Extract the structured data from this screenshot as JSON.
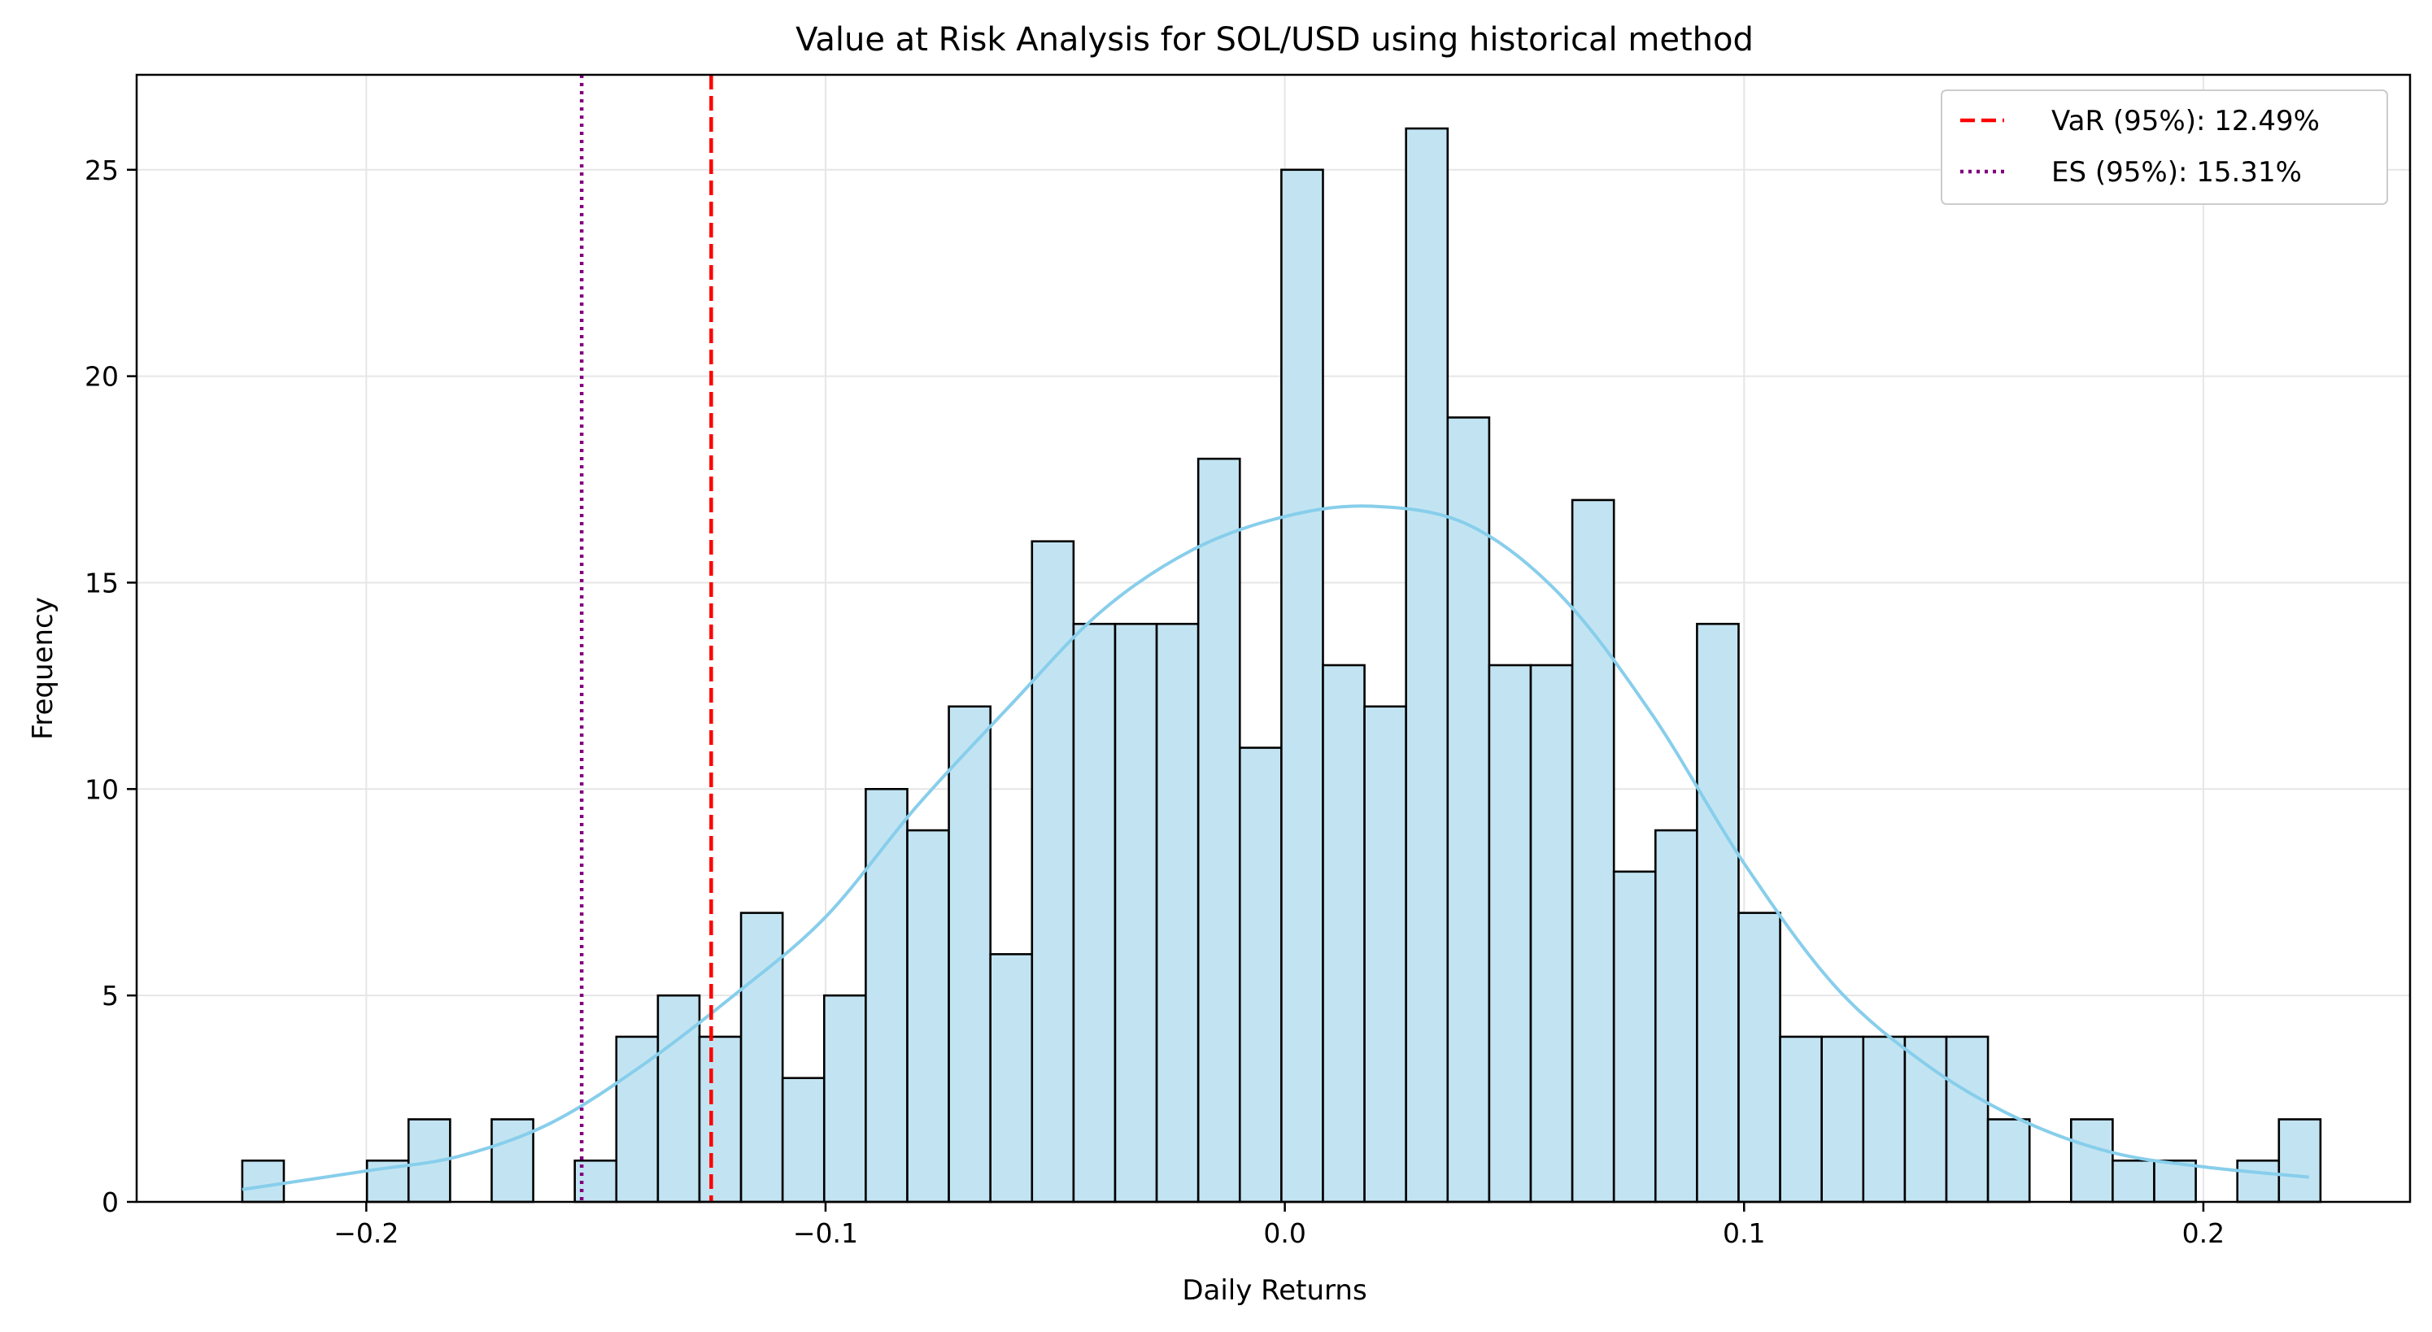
{
  "chart_data": {
    "type": "bar",
    "title": "Value at Risk Analysis for SOL/USD using historical method",
    "xlabel": "Daily Returns",
    "ylabel": "Frequency",
    "xlim": [
      -0.25,
      0.245
    ],
    "ylim": [
      0,
      27.3
    ],
    "grid": true,
    "legend_position": "top-right",
    "x_ticks": [
      {
        "value": -0.2,
        "label": "−0.2"
      },
      {
        "value": -0.1,
        "label": "−0.1"
      },
      {
        "value": 0.0,
        "label": "0.0"
      },
      {
        "value": 0.1,
        "label": "0.1"
      },
      {
        "value": 0.2,
        "label": "0.2"
      }
    ],
    "y_ticks": [
      {
        "value": 0,
        "label": "0"
      },
      {
        "value": 5,
        "label": "5"
      },
      {
        "value": 10,
        "label": "10"
      },
      {
        "value": 15,
        "label": "15"
      },
      {
        "value": 20,
        "label": "20"
      },
      {
        "value": 25,
        "label": "25"
      }
    ],
    "histogram": {
      "bin_start": -0.227,
      "bin_width": 0.00905,
      "counts": [
        1,
        0,
        0,
        1,
        2,
        0,
        2,
        0,
        1,
        4,
        5,
        4,
        7,
        3,
        5,
        10,
        9,
        12,
        6,
        16,
        14,
        14,
        14,
        18,
        11,
        25,
        13,
        12,
        26,
        19,
        13,
        13,
        17,
        8,
        9,
        14,
        7,
        4,
        4,
        4,
        4,
        4,
        2,
        0,
        2,
        1,
        1,
        0,
        1,
        2
      ],
      "fill": "#c2e4f2",
      "edge": "#000000"
    },
    "kde": {
      "color": "#87ceeb",
      "x": [
        -0.227,
        -0.2,
        -0.18,
        -0.16,
        -0.14,
        -0.12,
        -0.1,
        -0.08,
        -0.06,
        -0.04,
        -0.02,
        0.0,
        0.019,
        0.04,
        0.06,
        0.08,
        0.1,
        0.12,
        0.14,
        0.16,
        0.18,
        0.2,
        0.223
      ],
      "y": [
        0.3,
        0.75,
        1.1,
        1.9,
        3.3,
        5.0,
        6.9,
        9.6,
        12.0,
        14.3,
        15.8,
        16.6,
        16.85,
        16.4,
        14.7,
        11.8,
        8.2,
        5.2,
        3.3,
        2.0,
        1.2,
        0.85,
        0.6
      ]
    },
    "lines": [
      {
        "name": "VaR (95%): 12.49%",
        "x": -0.1249,
        "color": "#ff0000",
        "style": "dashed"
      },
      {
        "name": "ES (95%): 15.31%",
        "x": -0.1531,
        "color": "#800080",
        "style": "dotted"
      }
    ]
  }
}
